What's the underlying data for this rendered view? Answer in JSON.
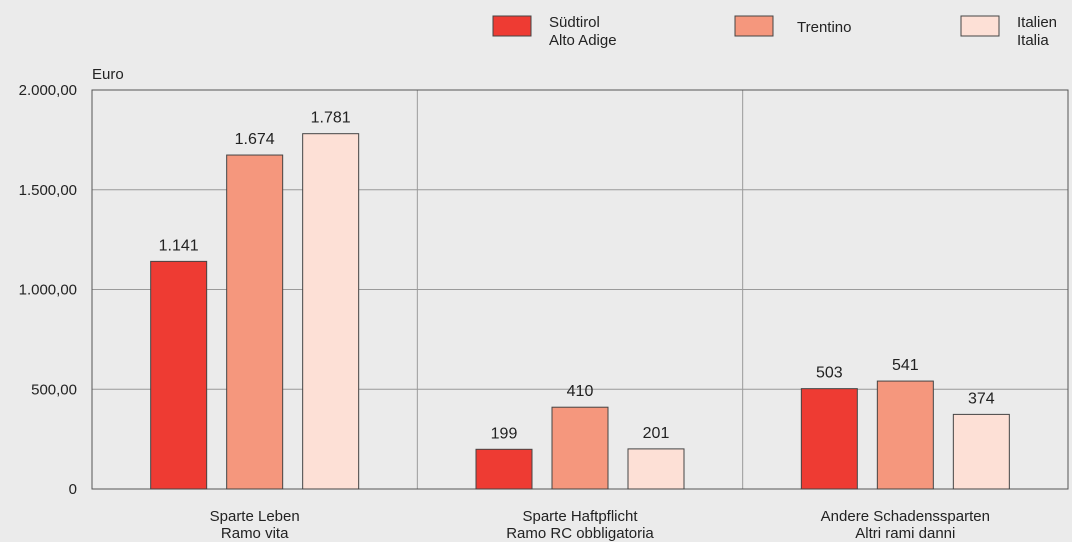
{
  "chart_data": {
    "type": "bar",
    "ylabel": "Euro",
    "ylim": [
      0,
      2000
    ],
    "yticks": [
      0,
      500,
      1000,
      1500,
      2000
    ],
    "ytick_labels": [
      "0",
      "500,00",
      "1.000,00",
      "1.500,00",
      "2.000,00"
    ],
    "grid": true,
    "legend_position": "top-right",
    "categories": [
      {
        "line1": "Sparte Leben",
        "line2": "Ramo vita"
      },
      {
        "line1": "Sparte Haftpflicht",
        "line2": "Ramo RC obbligatoria"
      },
      {
        "line1": "Andere Schadenssparten",
        "line2": "Altri rami danni"
      }
    ],
    "series": [
      {
        "name_line1": "Südtirol",
        "name_line2": "Alto Adige",
        "color": "#ee3b33",
        "values": [
          1141,
          199,
          503
        ],
        "labels": [
          "1.141",
          "199",
          "503"
        ]
      },
      {
        "name_line1": "Trentino",
        "name_line2": "",
        "color": "#f5977d",
        "values": [
          1674,
          410,
          541
        ],
        "labels": [
          "1.674",
          "410",
          "541"
        ]
      },
      {
        "name_line1": "Italien",
        "name_line2": "Italia",
        "color": "#fde0d6",
        "values": [
          1781,
          201,
          374
        ],
        "labels": [
          "1.781",
          "201",
          "374"
        ]
      }
    ]
  }
}
